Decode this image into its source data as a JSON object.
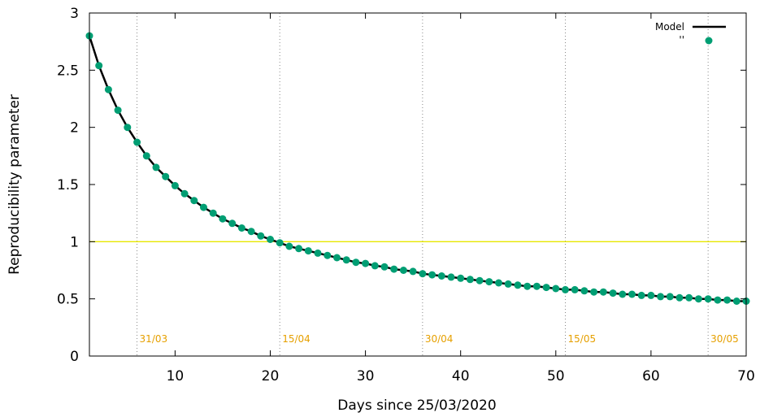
{
  "chart_data": {
    "type": "line",
    "xlabel": "Days since 25/03/2020",
    "ylabel": "Reproducibility parameter",
    "xlim": [
      1,
      70
    ],
    "ylim": [
      0,
      3
    ],
    "xticks": [
      10,
      20,
      30,
      40,
      50,
      60,
      70
    ],
    "xtick_labels": [
      "10",
      "20",
      "30",
      "40",
      "50",
      "60",
      "70"
    ],
    "yticks": [
      0,
      0.5,
      1,
      1.5,
      2,
      2.5,
      3
    ],
    "ytick_labels": [
      "0",
      "0.5",
      "1",
      "1.5",
      "2",
      "2.5",
      "3"
    ],
    "reference_line": {
      "y": 1,
      "color": "#e8e800"
    },
    "date_markers": [
      {
        "x": 6,
        "label": "31/03"
      },
      {
        "x": 21,
        "label": "15/04"
      },
      {
        "x": 36,
        "label": "30/04"
      },
      {
        "x": 51,
        "label": "15/05"
      },
      {
        "x": 66,
        "label": "30/05"
      }
    ],
    "date_label_color": "#e6a000",
    "legend_position": "top-right",
    "series": [
      {
        "name": "Model",
        "style": "line",
        "color": "#000000",
        "x": [
          1,
          2,
          3,
          4,
          5,
          6,
          7,
          8,
          9,
          10,
          11,
          12,
          13,
          14,
          15,
          16,
          17,
          18,
          19,
          20,
          21,
          22,
          23,
          24,
          25,
          26,
          27,
          28,
          29,
          30,
          31,
          32,
          33,
          34,
          35,
          36,
          37,
          38,
          39,
          40,
          41,
          42,
          43,
          44,
          45,
          46,
          47,
          48,
          49,
          50,
          51,
          52,
          53,
          54,
          55,
          56,
          57,
          58,
          59,
          60,
          61,
          62,
          63,
          64,
          65,
          66,
          67,
          68,
          69,
          70
        ],
        "y": [
          2.8,
          2.54,
          2.33,
          2.15,
          2.0,
          1.87,
          1.75,
          1.65,
          1.57,
          1.49,
          1.42,
          1.36,
          1.3,
          1.25,
          1.2,
          1.16,
          1.12,
          1.09,
          1.05,
          1.02,
          0.99,
          0.96,
          0.94,
          0.92,
          0.9,
          0.88,
          0.86,
          0.84,
          0.82,
          0.81,
          0.79,
          0.78,
          0.76,
          0.75,
          0.74,
          0.72,
          0.71,
          0.7,
          0.69,
          0.68,
          0.67,
          0.66,
          0.65,
          0.64,
          0.63,
          0.62,
          0.61,
          0.61,
          0.6,
          0.59,
          0.58,
          0.58,
          0.57,
          0.56,
          0.56,
          0.55,
          0.54,
          0.54,
          0.53,
          0.53,
          0.52,
          0.52,
          0.51,
          0.51,
          0.5,
          0.5,
          0.49,
          0.49,
          0.48,
          0.48
        ]
      },
      {
        "name": "''",
        "style": "points",
        "color": "#009e73",
        "x": [
          1,
          2,
          3,
          4,
          5,
          6,
          7,
          8,
          9,
          10,
          11,
          12,
          13,
          14,
          15,
          16,
          17,
          18,
          19,
          20,
          21,
          22,
          23,
          24,
          25,
          26,
          27,
          28,
          29,
          30,
          31,
          32,
          33,
          34,
          35,
          36,
          37,
          38,
          39,
          40,
          41,
          42,
          43,
          44,
          45,
          46,
          47,
          48,
          49,
          50,
          51,
          52,
          53,
          54,
          55,
          56,
          57,
          58,
          59,
          60,
          61,
          62,
          63,
          64,
          65,
          66,
          67,
          68,
          69,
          70
        ],
        "y": [
          2.8,
          2.54,
          2.33,
          2.15,
          2.0,
          1.87,
          1.75,
          1.65,
          1.57,
          1.49,
          1.42,
          1.36,
          1.3,
          1.25,
          1.2,
          1.16,
          1.12,
          1.09,
          1.05,
          1.02,
          0.99,
          0.96,
          0.94,
          0.92,
          0.9,
          0.88,
          0.86,
          0.84,
          0.82,
          0.81,
          0.79,
          0.78,
          0.76,
          0.75,
          0.74,
          0.72,
          0.71,
          0.7,
          0.69,
          0.68,
          0.67,
          0.66,
          0.65,
          0.64,
          0.63,
          0.62,
          0.61,
          0.61,
          0.6,
          0.59,
          0.58,
          0.58,
          0.57,
          0.56,
          0.56,
          0.55,
          0.54,
          0.54,
          0.53,
          0.53,
          0.52,
          0.52,
          0.51,
          0.51,
          0.5,
          0.5,
          0.49,
          0.49,
          0.48,
          0.48
        ]
      }
    ]
  }
}
